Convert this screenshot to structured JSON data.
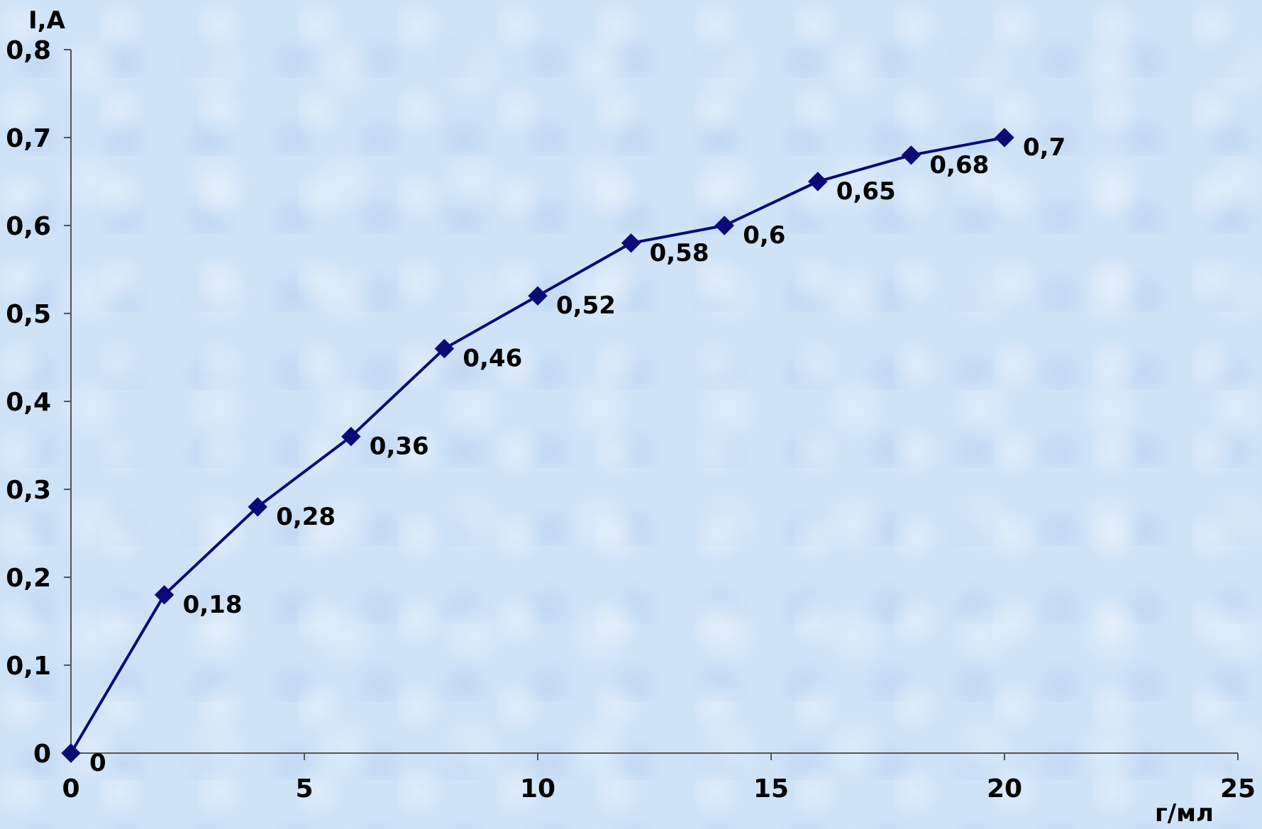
{
  "chart_data": {
    "type": "line",
    "title": "",
    "xlabel": "г/мл",
    "ylabel": "I,A",
    "xlim": [
      0,
      25
    ],
    "ylim": [
      0,
      0.8
    ],
    "x_ticks": [
      0,
      5,
      10,
      15,
      20,
      25
    ],
    "x_tick_labels": [
      "0",
      "5",
      "10",
      "15",
      "20",
      "25"
    ],
    "y_ticks": [
      0,
      0.1,
      0.2,
      0.3,
      0.4,
      0.5,
      0.6,
      0.7,
      0.8
    ],
    "y_tick_labels": [
      "0",
      "0,1",
      "0,2",
      "0,3",
      "0,4",
      "0,5",
      "0,6",
      "0,7",
      "0,8"
    ],
    "grid": false,
    "legend": "none",
    "marker": "diamond",
    "series_color": "#0a0a78",
    "series": [
      {
        "x": [
          0,
          2,
          4,
          6,
          8,
          10,
          12,
          14,
          16,
          18,
          20
        ],
        "values": [
          0,
          0.18,
          0.28,
          0.36,
          0.46,
          0.52,
          0.58,
          0.6,
          0.65,
          0.68,
          0.7
        ],
        "data_labels": [
          "0",
          "0,18",
          "0,28",
          "0,36",
          "0,46",
          "0,52",
          "0,58",
          "0,6",
          "0,65",
          "0,68",
          "0,7"
        ]
      }
    ]
  }
}
